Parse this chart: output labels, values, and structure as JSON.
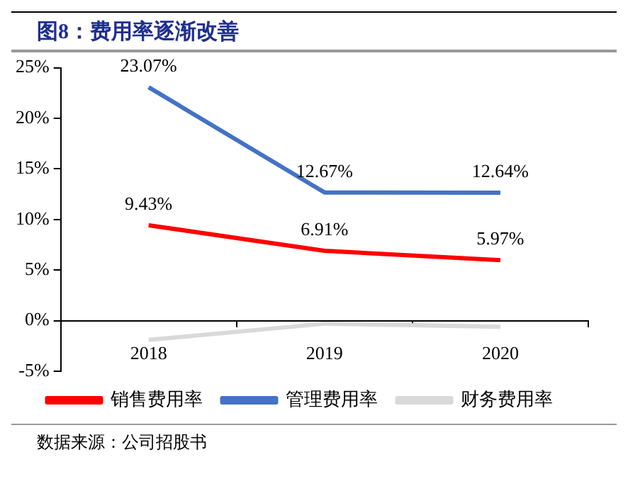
{
  "chart_data": {
    "type": "line",
    "title": "图8：费用率逐渐改善",
    "annotations": [
      "数据来源：公司招股书"
    ],
    "categories": [
      "2018",
      "2019",
      "2020"
    ],
    "series": [
      {
        "name": "销售费用率",
        "color": "#ff0000",
        "values": [
          9.43,
          6.91,
          5.97
        ],
        "value_labels": [
          "9.43%",
          "6.91%",
          "5.97%"
        ]
      },
      {
        "name": "管理费用率",
        "color": "#4472c4",
        "values": [
          23.07,
          12.67,
          12.64
        ],
        "value_labels": [
          "23.07%",
          "12.67%",
          "12.64%"
        ]
      },
      {
        "name": "财务费用率",
        "color": "#d9d9d9",
        "values": [
          -1.9,
          -0.3,
          -0.6
        ]
      }
    ],
    "ylim": [
      -5,
      25
    ],
    "yticks": [
      {
        "value": -5,
        "label": "-5%"
      },
      {
        "value": 0,
        "label": "0%"
      },
      {
        "value": 5,
        "label": "5%"
      },
      {
        "value": 10,
        "label": "10%"
      },
      {
        "value": 15,
        "label": "15%"
      },
      {
        "value": 20,
        "label": "20%"
      },
      {
        "value": 25,
        "label": "25%"
      }
    ],
    "grid": false,
    "legend": "bottom",
    "marker": "none",
    "line_style": "solid"
  }
}
